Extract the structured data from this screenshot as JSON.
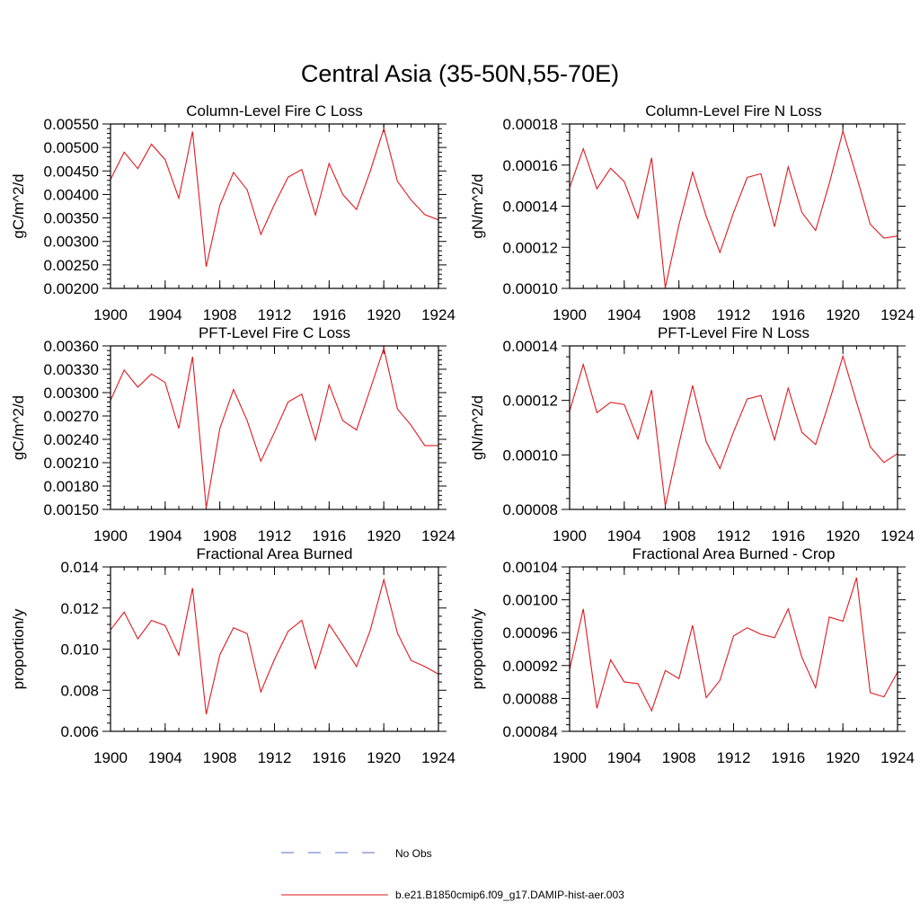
{
  "title": "Central Asia (35-50N,55-70E)",
  "legend": [
    {
      "label": "No Obs",
      "style": "dashed",
      "color": "#5b6dc9"
    },
    {
      "label": "b.e21.B1850cmip6.f09_g17.DAMIP-hist-aer.003",
      "style": "solid",
      "color": "#e0191f"
    }
  ],
  "chart_data": [
    {
      "type": "line",
      "title": "Column-Level Fire C Loss",
      "ylabel": "gC/m^2/d",
      "xlim": [
        1900,
        1924
      ],
      "ylim": [
        0.002,
        0.0055
      ],
      "xticks": [
        "1900",
        "1904",
        "1908",
        "1912",
        "1916",
        "1920",
        "1924"
      ],
      "yticks": [
        "0.00200",
        "0.00250",
        "0.00300",
        "0.00350",
        "0.00400",
        "0.00450",
        "0.00500",
        "0.00550"
      ],
      "x": [
        1900,
        1901,
        1902,
        1903,
        1904,
        1905,
        1906,
        1907,
        1908,
        1909,
        1910,
        1911,
        1912,
        1913,
        1914,
        1915,
        1916,
        1917,
        1918,
        1919,
        1920,
        1921,
        1922,
        1923,
        1924
      ],
      "series": [
        {
          "values": [
            0.00432,
            0.0049,
            0.00455,
            0.00507,
            0.00474,
            0.00392,
            0.00534,
            0.00246,
            0.00377,
            0.00447,
            0.0041,
            0.00315,
            0.00379,
            0.00437,
            0.00453,
            0.00356,
            0.00466,
            0.004,
            0.00368,
            0.00449,
            0.0054,
            0.00428,
            0.00388,
            0.00357,
            0.00346
          ]
        }
      ]
    },
    {
      "type": "line",
      "title": "Column-Level Fire N Loss",
      "ylabel": "gN/m^2/d",
      "xlim": [
        1900,
        1924
      ],
      "ylim": [
        0.0001,
        0.00018
      ],
      "xticks": [
        "1900",
        "1904",
        "1908",
        "1912",
        "1916",
        "1920",
        "1924"
      ],
      "yticks": [
        "0.00010",
        "0.00012",
        "0.00014",
        "0.00016",
        "0.00018"
      ],
      "x": [
        1900,
        1901,
        1902,
        1903,
        1904,
        1905,
        1906,
        1907,
        1908,
        1909,
        1910,
        1911,
        1912,
        1913,
        1914,
        1915,
        1916,
        1917,
        1918,
        1919,
        1920,
        1921,
        1922,
        1923,
        1924
      ],
      "series": [
        {
          "values": [
            0.000149,
            0.000168,
            0.0001485,
            0.0001585,
            0.000152,
            0.0001342,
            0.0001635,
            0.0001003,
            0.000131,
            0.0001565,
            0.000135,
            0.0001175,
            0.000137,
            0.000154,
            0.0001558,
            0.00013,
            0.0001592,
            0.000137,
            0.0001282,
            0.000151,
            0.0001765,
            0.0001545,
            0.0001312,
            0.0001245,
            0.0001255
          ]
        }
      ]
    },
    {
      "type": "line",
      "title": "PFT-Level Fire C Loss",
      "ylabel": "gC/m^2/d",
      "xlim": [
        1900,
        1924
      ],
      "ylim": [
        0.0015,
        0.0036
      ],
      "xticks": [
        "1900",
        "1904",
        "1908",
        "1912",
        "1916",
        "1920",
        "1924"
      ],
      "yticks": [
        "0.00150",
        "0.00180",
        "0.00210",
        "0.00240",
        "0.00270",
        "0.00300",
        "0.00330",
        "0.00360"
      ],
      "x": [
        1900,
        1901,
        1902,
        1903,
        1904,
        1905,
        1906,
        1907,
        1908,
        1909,
        1910,
        1911,
        1912,
        1913,
        1914,
        1915,
        1916,
        1917,
        1918,
        1919,
        1920,
        1921,
        1922,
        1923,
        1924
      ],
      "series": [
        {
          "values": [
            0.0029,
            0.00329,
            0.00307,
            0.00324,
            0.00313,
            0.00254,
            0.00346,
            0.00152,
            0.00254,
            0.00304,
            0.00264,
            0.00212,
            0.00249,
            0.00288,
            0.00298,
            0.00239,
            0.0031,
            0.00264,
            0.00252,
            0.00304,
            0.00357,
            0.00279,
            0.00258,
            0.00232,
            0.00232
          ]
        }
      ]
    },
    {
      "type": "line",
      "title": "PFT-Level Fire N Loss",
      "ylabel": "gN/m^2/d",
      "xlim": [
        1900,
        1924
      ],
      "ylim": [
        8e-05,
        0.00014
      ],
      "xticks": [
        "1900",
        "1904",
        "1908",
        "1912",
        "1916",
        "1920",
        "1924"
      ],
      "yticks": [
        "0.00008",
        "0.00010",
        "0.00012",
        "0.00014"
      ],
      "x": [
        1900,
        1901,
        1902,
        1903,
        1904,
        1905,
        1906,
        1907,
        1908,
        1909,
        1910,
        1911,
        1912,
        1913,
        1914,
        1915,
        1916,
        1917,
        1918,
        1919,
        1920,
        1921,
        1922,
        1923,
        1924
      ],
      "series": [
        {
          "values": [
            0.000116,
            0.0001332,
            0.0001155,
            0.0001193,
            0.0001185,
            0.0001058,
            0.0001238,
            8.13e-05,
            0.000104,
            0.0001255,
            0.0001048,
            9.5e-05,
            0.0001085,
            0.0001205,
            0.0001218,
            0.0001055,
            0.0001245,
            0.0001083,
            0.0001038,
            0.0001195,
            0.0001362,
            0.0001193,
            0.000103,
            9.72e-05,
            0.0001005
          ]
        }
      ]
    },
    {
      "type": "line",
      "title": "Fractional Area Burned",
      "ylabel": "proportion/y",
      "xlim": [
        1900,
        1924
      ],
      "ylim": [
        0.006,
        0.014
      ],
      "xticks": [
        "1900",
        "1904",
        "1908",
        "1912",
        "1916",
        "1920",
        "1924"
      ],
      "yticks": [
        "0.006",
        "0.008",
        "0.010",
        "0.012",
        "0.014"
      ],
      "x": [
        1900,
        1901,
        1902,
        1903,
        1904,
        1905,
        1906,
        1907,
        1908,
        1909,
        1910,
        1911,
        1912,
        1913,
        1914,
        1915,
        1916,
        1917,
        1918,
        1919,
        1920,
        1921,
        1922,
        1923,
        1924
      ],
      "series": [
        {
          "values": [
            0.01093,
            0.0118,
            0.0105,
            0.0114,
            0.01115,
            0.0097,
            0.01297,
            0.00683,
            0.00973,
            0.01104,
            0.01075,
            0.00792,
            0.0095,
            0.01087,
            0.0114,
            0.00905,
            0.0112,
            0.0102,
            0.00915,
            0.0109,
            0.01338,
            0.01078,
            0.00945,
            0.00915,
            0.00878
          ]
        }
      ]
    },
    {
      "type": "line",
      "title": "Fractional Area Burned - Crop",
      "ylabel": "proportion/y",
      "xlim": [
        1900,
        1924
      ],
      "ylim": [
        0.00084,
        0.00104
      ],
      "xticks": [
        "1900",
        "1904",
        "1908",
        "1912",
        "1916",
        "1920",
        "1924"
      ],
      "yticks": [
        "0.00084",
        "0.00088",
        "0.00092",
        "0.00096",
        "0.00100",
        "0.00104"
      ],
      "x": [
        1900,
        1901,
        1902,
        1903,
        1904,
        1905,
        1906,
        1907,
        1908,
        1909,
        1910,
        1911,
        1912,
        1913,
        1914,
        1915,
        1916,
        1917,
        1918,
        1919,
        1920,
        1921,
        1922,
        1923,
        1924
      ],
      "series": [
        {
          "values": [
            0.000915,
            0.000989,
            0.000868,
            0.000927,
            0.0009,
            0.000898,
            0.000865,
            0.000914,
            0.000904,
            0.000969,
            0.000881,
            0.000902,
            0.000956,
            0.000966,
            0.000958,
            0.000954,
            0.000989,
            0.00093,
            0.000893,
            0.000979,
            0.000974,
            0.001027,
            0.000887,
            0.000882,
            0.000912
          ]
        }
      ]
    }
  ]
}
